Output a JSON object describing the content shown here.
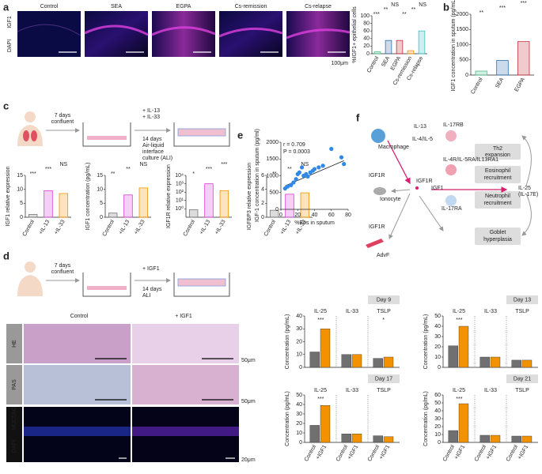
{
  "panel_a": {
    "label": "a",
    "stain_labels": [
      "IGF1",
      "DAPI"
    ],
    "groups": [
      "Control",
      "SEA",
      "EGPA",
      "Cs-remission",
      "Cs-relapse"
    ],
    "scale_bar": "100μm",
    "chart": {
      "type": "bar",
      "y_label": "%IGF1+ epithelial cells",
      "categories": [
        "Control",
        "SEA",
        "EGPA",
        "Cs-remission",
        "Cs-relapse"
      ],
      "values": [
        5,
        35,
        35,
        8,
        60
      ],
      "colors": [
        "#4dbf8a",
        "#2e6fb0",
        "#c0303a",
        "#f39200",
        "#3cc0c0"
      ],
      "ylim": [
        0,
        100
      ],
      "yticks": [
        0,
        20,
        40,
        60,
        80,
        100
      ],
      "significance": [
        "***",
        "**",
        "NS",
        "**",
        "**",
        "NS"
      ]
    }
  },
  "panel_b": {
    "label": "b",
    "chart": {
      "type": "bar",
      "y_label": "IGF1 concentration in sputum (pg/mL)",
      "categories": [
        "Control",
        "SEA",
        "EGPA"
      ],
      "values": [
        130,
        480,
        1100
      ],
      "colors": [
        "#4dbf8a",
        "#2e6fb0",
        "#c0303a"
      ],
      "ylim": [
        0,
        2000
      ],
      "yticks": [
        0,
        500,
        1000,
        1500,
        2000
      ],
      "significance": [
        "**",
        "***",
        "***"
      ]
    }
  },
  "panel_c": {
    "label": "c",
    "steps": [
      "7 days",
      "confluent",
      "+ IL-13",
      "+ IL-33",
      "14 days",
      "Air-liquid",
      "interface",
      "culture (ALI)"
    ],
    "charts": [
      {
        "type": "bar",
        "y_label": "IGF1 relative expression",
        "categories": [
          "Control",
          "+IL-13",
          "+IL-33"
        ],
        "values": [
          1,
          9.5,
          8.5
        ],
        "colors": [
          "#777777",
          "#d63fd6",
          "#f39200"
        ],
        "ylim": [
          0,
          15
        ],
        "yticks": [
          0,
          5,
          10,
          15
        ],
        "significance": [
          "***",
          "***",
          "NS"
        ]
      },
      {
        "type": "bar",
        "y_label": "IGF1 concentration (pg/mL)",
        "categories": [
          "Control",
          "+IL-13",
          "+IL-33"
        ],
        "values": [
          1.5,
          8,
          10.5
        ],
        "colors": [
          "#777777",
          "#d63fd6",
          "#f39200"
        ],
        "ylim": [
          0,
          15
        ],
        "yticks": [
          0,
          5,
          10,
          15
        ],
        "significance": [
          "**",
          "**",
          "NS"
        ]
      },
      {
        "type": "bar",
        "y_label": "IGF1R relative expression",
        "log": true,
        "categories": [
          "Control",
          "+IL-13",
          "+IL-33"
        ],
        "values": [
          0.8,
          1000,
          150
        ],
        "colors": [
          "#777777",
          "#d63fd6",
          "#f39200"
        ],
        "ylim": [
          0.1,
          10000
        ],
        "yticks": [
          {
            "value": 1,
            "label": "10⁰"
          },
          {
            "value": 10,
            "label": "10¹"
          },
          {
            "value": 100,
            "label": "10²"
          },
          {
            "value": 1000,
            "label": "10³"
          },
          {
            "value": 10000,
            "label": "10⁴"
          }
        ],
        "significance": [
          "*",
          "***",
          "***"
        ]
      },
      {
        "type": "bar",
        "y_label": "IGFBP3 relative expression",
        "categories": [
          "Control",
          "+IL-13",
          "+IL-33"
        ],
        "values": [
          1,
          3.3,
          3.5
        ],
        "colors": [
          "#777777",
          "#d63fd6",
          "#f39200"
        ],
        "ylim": [
          0,
          6
        ],
        "yticks": [
          0,
          2,
          4,
          6
        ],
        "significance": [
          "**",
          "**",
          "NS"
        ]
      }
    ]
  },
  "panel_d": {
    "label": "d",
    "steps": [
      "7 days",
      "confluent",
      "+ IGF1",
      "14 days",
      "ALI"
    ],
    "columns": [
      "Control",
      "+ IGF1"
    ],
    "rows": [
      "HE",
      "PAS"
    ],
    "if_labels": [
      "DAPI",
      "MUC5AC"
    ],
    "scale_bars": [
      "50μm",
      "50μm",
      "20μm"
    ],
    "charts": [
      {
        "type": "grouped_bar",
        "title": "Day 9",
        "y_label": "Concentration (pg/mL)",
        "categories": [
          "IL-25",
          "IL-33",
          "TSLP"
        ],
        "series": [
          {
            "name": "Control",
            "color": "#707070",
            "values": [
              12,
              10,
              7
            ]
          },
          {
            "name": "+IGF1",
            "color": "#f39200",
            "values": [
              30,
              10,
              8
            ]
          }
        ],
        "ylim": [
          0,
          40
        ],
        "yticks": [
          0,
          10,
          20,
          30,
          40
        ],
        "significance": [
          "***",
          "*"
        ]
      },
      {
        "type": "grouped_bar",
        "title": "Day 13",
        "y_label": "Concentration (pg/mL)",
        "categories": [
          "IL-25",
          "IL-33",
          "TSLP"
        ],
        "series": [
          {
            "name": "Control",
            "color": "#707070",
            "values": [
              21,
              10,
              7
            ]
          },
          {
            "name": "+IGF1",
            "color": "#f39200",
            "values": [
              40,
              10,
              7
            ]
          }
        ],
        "ylim": [
          0,
          50
        ],
        "yticks": [
          0,
          10,
          20,
          30,
          40,
          50
        ],
        "significance": [
          "***"
        ]
      },
      {
        "type": "grouped_bar",
        "title": "Day 17",
        "y_label": "Concentration (pg/mL)",
        "categories": [
          "IL-25",
          "IL-33",
          "TSLP"
        ],
        "series": [
          {
            "name": "Control",
            "color": "#707070",
            "values": [
              18,
              9,
              7
            ]
          },
          {
            "name": "+IGF1",
            "color": "#f39200",
            "values": [
              39,
              9,
              6
            ]
          }
        ],
        "ylim": [
          0,
          50
        ],
        "yticks": [
          0,
          10,
          20,
          30,
          40,
          50
        ],
        "significance": [
          "***"
        ]
      },
      {
        "type": "grouped_bar",
        "title": "Day 21",
        "y_label": "Concentration (pg/mL)",
        "categories": [
          "IL-25",
          "IL-33",
          "TSLP"
        ],
        "series": [
          {
            "name": "Control",
            "color": "#707070",
            "values": [
              15,
              9,
              8
            ]
          },
          {
            "name": "+IGF1",
            "color": "#f39200",
            "values": [
              49,
              9,
              8
            ]
          }
        ],
        "ylim": [
          0,
          60
        ],
        "yticks": [
          0,
          10,
          20,
          30,
          40,
          50,
          60
        ],
        "significance": [
          "***"
        ]
      }
    ]
  },
  "panel_e": {
    "label": "e",
    "chart": {
      "type": "scatter",
      "stats": [
        "r = 0.709",
        "P = 0.0003"
      ],
      "x_label": "%Eos in sputum",
      "y_label": "IGF-1 concentration in sputum (pg/ml)",
      "color": "#2e8ae6",
      "x": [
        5,
        8,
        12,
        15,
        18,
        20,
        22,
        25,
        27,
        30,
        32,
        35,
        38,
        40,
        45,
        50,
        60,
        72,
        75
      ],
      "y": [
        620,
        680,
        720,
        800,
        900,
        1050,
        1100,
        1250,
        1000,
        1050,
        980,
        1100,
        1150,
        1200,
        1250,
        1300,
        1800,
        1550,
        1350
      ],
      "fit": {
        "x": [
          5,
          75
        ],
        "y": [
          700,
          1450
        ]
      },
      "xlim": [
        0,
        80
      ],
      "xticks": [
        0,
        20,
        40,
        60,
        80
      ],
      "ylim": [
        0,
        2000
      ],
      "yticks": [
        0,
        500,
        1000,
        1500,
        2000
      ]
    }
  },
  "panel_f": {
    "label": "f",
    "nodes": [
      "Macrophage",
      "IGF1R",
      "Ionocyte",
      "IGF1R",
      "AdvF",
      "IL-13",
      "IL-4/IL-5",
      "IL-17RB",
      "IL-4R/IL-5RA/IL13RA1",
      "Th2",
      "expansion",
      "Eosinophil",
      "recruitment",
      "IGF1R",
      "IGF1",
      "IL-17RA",
      "Neutrophil",
      "recruitment",
      "IL-25",
      "(IL-17E)",
      "Goblet",
      "hyperplasia"
    ]
  }
}
